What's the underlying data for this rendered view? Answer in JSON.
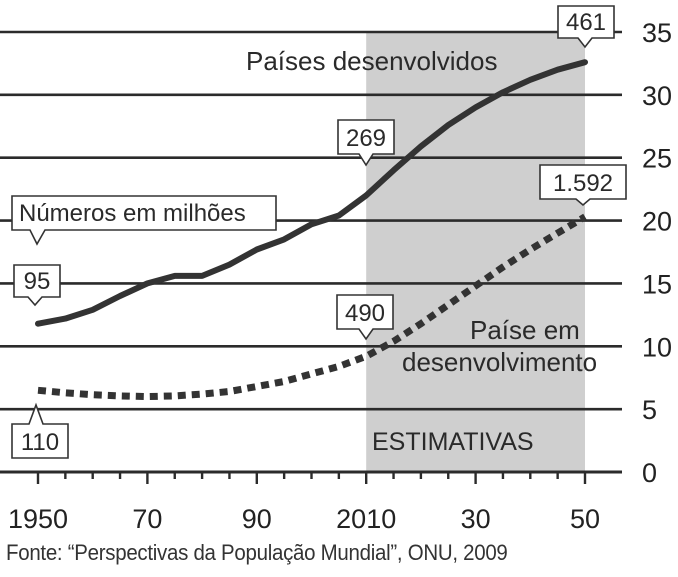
{
  "chart_data": {
    "type": "line",
    "x_tick_labels": [
      "1950",
      "70",
      "90",
      "2010",
      "30",
      "50"
    ],
    "y_tick_labels": [
      "0",
      "5",
      "10",
      "15",
      "20",
      "25",
      "30",
      "35"
    ],
    "xlim": [
      1950,
      2050
    ],
    "ylim": [
      0,
      35
    ],
    "shaded_region": {
      "from": 2010,
      "to": 2050,
      "label": "ESTIMATIVAS"
    },
    "units_note": "Números em milhões",
    "series": [
      {
        "name": "Países desenvolvidos",
        "style": "solid",
        "color": "#333333",
        "x": [
          1950,
          1955,
          1960,
          1965,
          1970,
          1975,
          1980,
          1985,
          1990,
          1995,
          2000,
          2005,
          2010,
          2015,
          2020,
          2025,
          2030,
          2035,
          2040,
          2045,
          2050
        ],
        "y": [
          11.8,
          12.2,
          12.9,
          14.0,
          15.0,
          15.6,
          15.6,
          16.5,
          17.7,
          18.5,
          19.7,
          20.4,
          22.0,
          24.0,
          25.9,
          27.6,
          29.0,
          30.2,
          31.2,
          32.0,
          32.6
        ],
        "callouts": [
          {
            "text": "95",
            "x": 1950
          },
          {
            "text": "269",
            "x": 2010
          },
          {
            "text": "461",
            "x": 2050
          }
        ]
      },
      {
        "name": "Paíse em desenvolvimento",
        "style": "dotted",
        "color": "#333333",
        "x": [
          1950,
          1955,
          1960,
          1965,
          1970,
          1975,
          1980,
          1985,
          1990,
          1995,
          2000,
          2005,
          2010,
          2015,
          2020,
          2025,
          2030,
          2035,
          2040,
          2045,
          2050
        ],
        "y": [
          6.5,
          6.3,
          6.15,
          6.05,
          6.0,
          6.05,
          6.2,
          6.4,
          6.8,
          7.2,
          7.8,
          8.4,
          9.2,
          10.4,
          11.8,
          13.3,
          14.8,
          16.3,
          17.7,
          19.0,
          20.3
        ],
        "callouts": [
          {
            "text": "110",
            "x": 1950
          },
          {
            "text": "490",
            "x": 2010
          },
          {
            "text": "1.592",
            "x": 2050
          }
        ]
      }
    ],
    "source": "Fonte: “Perspectivas da População Mundial”, ONU, 2009"
  }
}
